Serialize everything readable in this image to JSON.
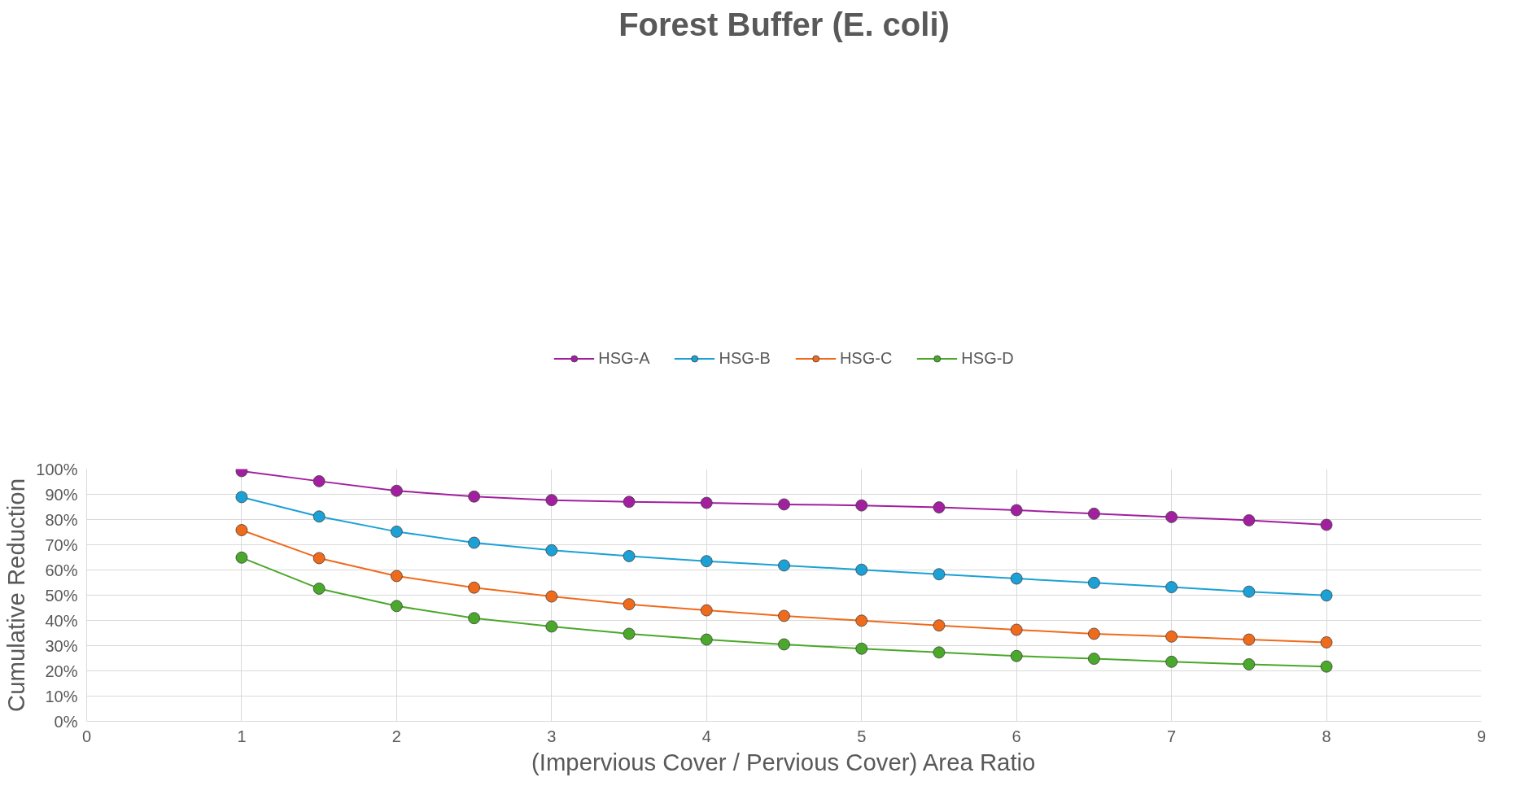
{
  "chart_data": {
    "type": "line",
    "title": "Forest Buffer (E. coli)",
    "xlabel": "(Impervious Cover / Pervious Cover) Area Ratio",
    "ylabel": "Cumulative Reduction",
    "x": [
      1,
      1.5,
      2,
      2.5,
      3,
      3.5,
      4,
      4.5,
      5,
      5.5,
      6,
      6.5,
      7,
      7.5,
      8
    ],
    "series": [
      {
        "name": "HSG-A",
        "color": "#a21f9f",
        "values": [
          99.2,
          95.2,
          91.4,
          89.1,
          87.7,
          87,
          86.6,
          86,
          85.6,
          84.8,
          83.7,
          82.3,
          81,
          79.7,
          77.9
        ]
      },
      {
        "name": "HSG-B",
        "color": "#1ba1d6",
        "values": [
          88.9,
          81.2,
          75.2,
          70.8,
          67.8,
          65.5,
          63.5,
          61.8,
          60.1,
          58.3,
          56.6,
          54.9,
          53.2,
          51.4,
          49.9
        ]
      },
      {
        "name": "HSG-C",
        "color": "#f06a1c",
        "values": [
          75.8,
          64.7,
          57.6,
          53,
          49.5,
          46.4,
          44,
          41.8,
          39.9,
          38,
          36.3,
          34.7,
          33.6,
          32.4,
          31.3
        ]
      },
      {
        "name": "HSG-D",
        "color": "#4aa82a",
        "values": [
          64.9,
          52.6,
          45.7,
          40.9,
          37.6,
          34.7,
          32.4,
          30.5,
          28.8,
          27.3,
          25.9,
          24.8,
          23.6,
          22.6,
          21.7
        ]
      }
    ],
    "xlim": [
      0,
      9
    ],
    "xticks": [
      0,
      1,
      2,
      3,
      4,
      5,
      6,
      7,
      8,
      9
    ],
    "ylim": [
      0,
      100
    ],
    "yticks": [
      {
        "value": 0,
        "label": "0%"
      },
      {
        "value": 10,
        "label": "10%"
      },
      {
        "value": 20,
        "label": "20%"
      },
      {
        "value": 30,
        "label": "30%"
      },
      {
        "value": 40,
        "label": "40%"
      },
      {
        "value": 50,
        "label": "50%"
      },
      {
        "value": 60,
        "label": "60%"
      },
      {
        "value": 70,
        "label": "70%"
      },
      {
        "value": 80,
        "label": "80%"
      },
      {
        "value": 90,
        "label": "90%"
      },
      {
        "value": 100,
        "label": "100%"
      }
    ],
    "grid": true,
    "legend": "top",
    "marker": "circle",
    "line_style": "solid"
  }
}
